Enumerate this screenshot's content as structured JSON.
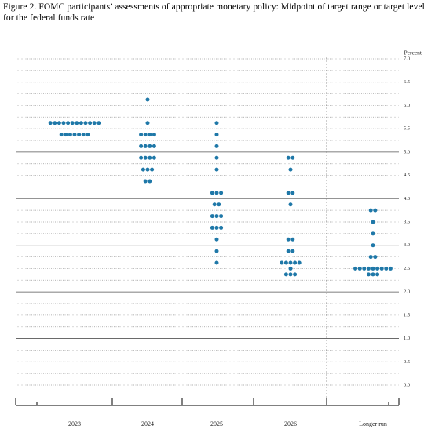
{
  "chart_data": {
    "type": "dot",
    "title": "Figure 2.  FOMC participants’ assessments of appropriate monetary policy: Midpoint of target range or target level for the federal funds rate",
    "y_label": "Percent",
    "color": "#1f78a8",
    "categories": [
      "2023",
      "2024",
      "2025",
      "2026",
      "Longer run"
    ],
    "values": [
      [
        5.625,
        5.625,
        5.625,
        5.625,
        5.625,
        5.625,
        5.625,
        5.625,
        5.625,
        5.625,
        5.625,
        5.625,
        5.375,
        5.375,
        5.375,
        5.375,
        5.375,
        5.375,
        5.375
      ],
      [
        6.125,
        5.625,
        5.375,
        5.375,
        5.375,
        5.375,
        5.125,
        5.125,
        5.125,
        5.125,
        4.875,
        4.875,
        4.875,
        4.875,
        4.625,
        4.625,
        4.625,
        4.375,
        4.375
      ],
      [
        5.625,
        5.375,
        5.125,
        4.875,
        4.625,
        4.125,
        4.125,
        4.125,
        3.875,
        3.875,
        3.625,
        3.625,
        3.625,
        3.375,
        3.375,
        3.375,
        3.125,
        2.875,
        2.625
      ],
      [
        4.875,
        4.875,
        4.625,
        4.125,
        4.125,
        3.875,
        3.125,
        3.125,
        2.875,
        2.875,
        2.625,
        2.625,
        2.625,
        2.625,
        2.625,
        2.5,
        2.375,
        2.375,
        2.375
      ],
      [
        3.75,
        3.75,
        3.5,
        3.25,
        3.0,
        2.75,
        2.75,
        2.5,
        2.5,
        2.5,
        2.5,
        2.5,
        2.5,
        2.5,
        2.5,
        2.5,
        2.375,
        2.375,
        2.375
      ]
    ],
    "ylim": [
      0,
      7
    ],
    "yticks": [
      {
        "value": 0,
        "label": "0.0"
      },
      {
        "value": 0.5,
        "label": "0.5"
      },
      {
        "value": 1,
        "label": "1.0"
      },
      {
        "value": 1.5,
        "label": "1.5"
      },
      {
        "value": 2,
        "label": "2.0"
      },
      {
        "value": 2.5,
        "label": "2.5"
      },
      {
        "value": 3,
        "label": "3.0"
      },
      {
        "value": 3.5,
        "label": "3.5"
      },
      {
        "value": 4,
        "label": "4.0"
      },
      {
        "value": 4.5,
        "label": "4.5"
      },
      {
        "value": 5,
        "label": "5.0"
      },
      {
        "value": 5.5,
        "label": "5.5"
      },
      {
        "value": 6,
        "label": "6.0"
      },
      {
        "value": 6.5,
        "label": "6.5"
      },
      {
        "value": 7,
        "label": "7.0"
      }
    ],
    "grid": true
  }
}
